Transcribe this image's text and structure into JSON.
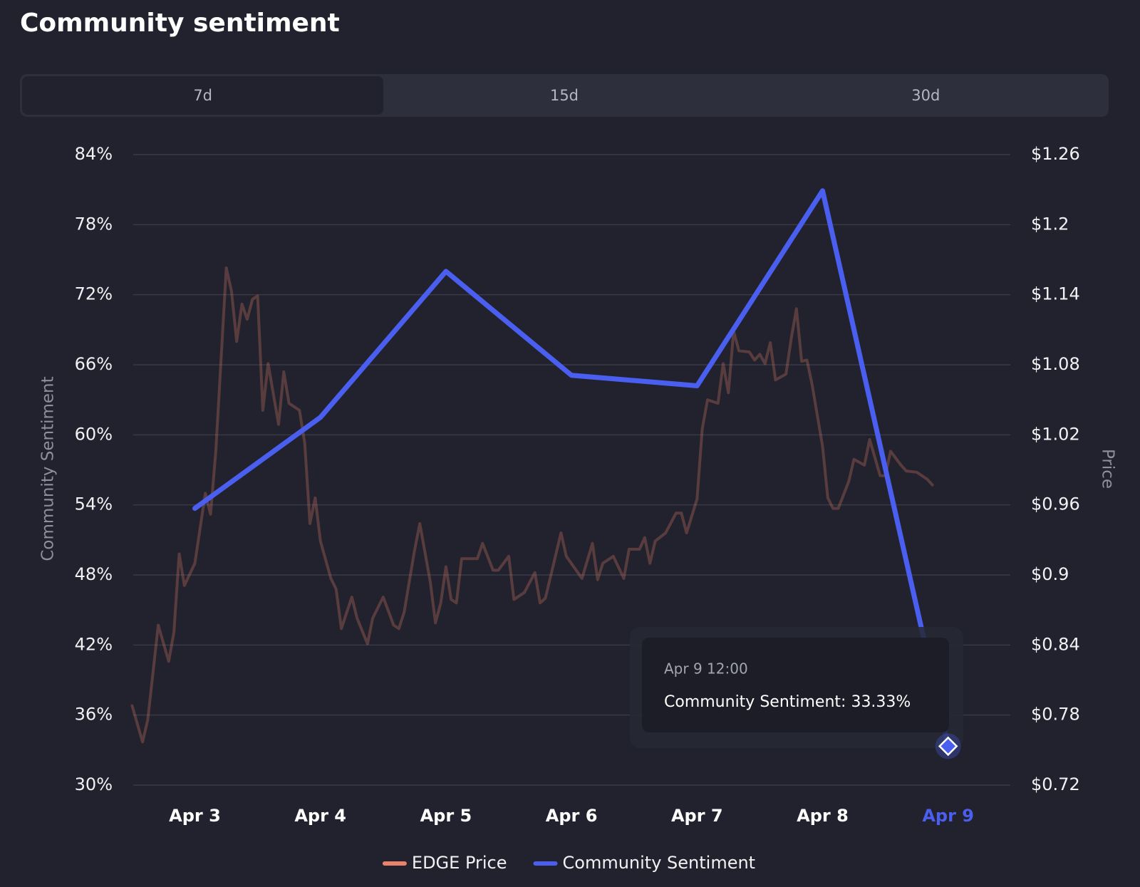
{
  "header": {
    "title": "Community sentiment"
  },
  "tabs": [
    "7d",
    "15d",
    "30d"
  ],
  "chart_data": {
    "type": "line",
    "y_label": "Community Sentiment",
    "y2_label": "Price",
    "categories": [
      "Apr 3",
      "Apr 4",
      "Apr 5",
      "Apr 6",
      "Apr 7",
      "Apr 8",
      "Apr 9"
    ],
    "ylim": [
      30,
      84
    ],
    "yticks": [
      {
        "value": 30,
        "label": "30%"
      },
      {
        "value": 36,
        "label": "36%"
      },
      {
        "value": 42,
        "label": "42%"
      },
      {
        "value": 48,
        "label": "48%"
      },
      {
        "value": 54,
        "label": "54%"
      },
      {
        "value": 60,
        "label": "60%"
      },
      {
        "value": 66,
        "label": "66%"
      },
      {
        "value": 72,
        "label": "72%"
      },
      {
        "value": 78,
        "label": "78%"
      },
      {
        "value": 84,
        "label": "84%"
      }
    ],
    "y2lim": [
      0.72,
      1.26
    ],
    "y2ticks": [
      {
        "value": 0.72,
        "label": "$0.72"
      },
      {
        "value": 0.78,
        "label": "$0.78"
      },
      {
        "value": 0.84,
        "label": "$0.84"
      },
      {
        "value": 0.9,
        "label": "$0.9"
      },
      {
        "value": 0.96,
        "label": "$0.96"
      },
      {
        "value": 1.02,
        "label": "$1.02"
      },
      {
        "value": 1.08,
        "label": "$1.08"
      },
      {
        "value": 1.14,
        "label": "$1.14"
      },
      {
        "value": 1.2,
        "label": "$1.2"
      },
      {
        "value": 1.26,
        "label": "$1.26"
      }
    ],
    "grid": true,
    "series": [
      {
        "name": "EDGE Price",
        "color": "#e8826a",
        "axis": "y2",
        "x": [
          "Apr 3 00:00",
          "Apr 3 02:00",
          "Apr 3 03:00",
          "Apr 3 05:00",
          "Apr 3 07:00",
          "Apr 3 08:00",
          "Apr 3 09:00",
          "Apr 3 10:00",
          "Apr 3 12:00",
          "Apr 3 14:00",
          "Apr 3 15:00",
          "Apr 3 16:00",
          "Apr 3 18:00",
          "Apr 3 19:00",
          "Apr 3 20:00",
          "Apr 3 21:00",
          "Apr 3 22:00",
          "Apr 3 23:00",
          "Apr 4 00:00",
          "Apr 4 01:00",
          "Apr 4 02:00",
          "Apr 4 04:00",
          "Apr 4 05:00",
          "Apr 4 06:00",
          "Apr 4 08:00",
          "Apr 4 09:00",
          "Apr 4 10:00",
          "Apr 4 11:00",
          "Apr 4 12:00",
          "Apr 4 14:00",
          "Apr 4 15:00",
          "Apr 4 16:00",
          "Apr 4 18:00",
          "Apr 4 19:00",
          "Apr 4 21:00",
          "Apr 4 22:00",
          "Apr 5 00:00",
          "Apr 5 02:00",
          "Apr 5 03:00",
          "Apr 5 04:00",
          "Apr 5 06:00",
          "Apr 5 07:00",
          "Apr 5 09:00",
          "Apr 5 10:00",
          "Apr 5 11:00",
          "Apr 5 12:00",
          "Apr 5 13:00",
          "Apr 5 14:00",
          "Apr 5 15:00",
          "Apr 5 18:00",
          "Apr 5 19:00",
          "Apr 5 21:00",
          "Apr 5 22:00",
          "Apr 6 00:00",
          "Apr 6 01:00",
          "Apr 6 03:00",
          "Apr 6 05:00",
          "Apr 6 06:00",
          "Apr 6 07:00",
          "Apr 6 10:00",
          "Apr 6 11:00",
          "Apr 6 14:00",
          "Apr 6 16:00",
          "Apr 6 17:00",
          "Apr 6 18:00",
          "Apr 6 20:00",
          "Apr 6 22:00",
          "Apr 6 23:00",
          "Apr 7 01:00",
          "Apr 7 02:00",
          "Apr 7 03:00",
          "Apr 7 04:00",
          "Apr 7 06:00",
          "Apr 7 08:00",
          "Apr 7 09:00",
          "Apr 7 10:00",
          "Apr 7 12:00",
          "Apr 7 13:00",
          "Apr 7 14:00",
          "Apr 7 16:00",
          "Apr 7 17:00",
          "Apr 7 18:00",
          "Apr 7 19:00",
          "Apr 7 20:00",
          "Apr 7 22:00",
          "Apr 7 23:00",
          "Apr 8 00:00",
          "Apr 8 01:00",
          "Apr 8 02:00",
          "Apr 8 03:00",
          "Apr 8 05:00",
          "Apr 8 06:00",
          "Apr 8 07:00",
          "Apr 8 08:00",
          "Apr 8 09:00",
          "Apr 8 10:00",
          "Apr 8 12:00",
          "Apr 8 13:00",
          "Apr 8 14:00",
          "Apr 8 15:00",
          "Apr 8 17:00",
          "Apr 8 18:00",
          "Apr 8 20:00",
          "Apr 8 21:00",
          "Apr 8 23:00",
          "Apr 9 00:00",
          "Apr 9 01:00",
          "Apr 9 03:00",
          "Apr 9 04:00",
          "Apr 9 06:00",
          "Apr 9 08:00",
          "Apr 9 09:00"
        ],
        "values": [
          0.788,
          0.757,
          0.776,
          0.857,
          0.826,
          0.851,
          0.918,
          0.891,
          0.91,
          0.97,
          0.952,
          1.006,
          1.163,
          1.143,
          1.1,
          1.132,
          1.119,
          1.136,
          1.139,
          1.041,
          1.081,
          1.029,
          1.074,
          1.047,
          1.041,
          1.013,
          0.944,
          0.966,
          0.929,
          0.897,
          0.888,
          0.854,
          0.881,
          0.863,
          0.841,
          0.863,
          0.881,
          0.857,
          0.854,
          0.868,
          0.921,
          0.944,
          0.894,
          0.859,
          0.876,
          0.907,
          0.879,
          0.876,
          0.914,
          0.914,
          0.927,
          0.904,
          0.904,
          0.916,
          0.879,
          0.885,
          0.902,
          0.876,
          0.88,
          0.936,
          0.916,
          0.897,
          0.927,
          0.896,
          0.91,
          0.916,
          0.897,
          0.922,
          0.922,
          0.932,
          0.91,
          0.929,
          0.936,
          0.953,
          0.953,
          0.936,
          0.965,
          1.025,
          1.05,
          1.047,
          1.081,
          1.056,
          1.109,
          1.092,
          1.091,
          1.084,
          1.089,
          1.081,
          1.099,
          1.067,
          1.072,
          1.102,
          1.128,
          1.083,
          1.084,
          1.063,
          1.01,
          0.966,
          0.957,
          0.957,
          0.98,
          0.999,
          0.994,
          1.016,
          0.985,
          0.985,
          1.006,
          0.994,
          0.989,
          0.988,
          0.982,
          0.977
        ]
      },
      {
        "name": "Community Sentiment",
        "color": "#4a5ff0",
        "values": [
          53.7,
          61.5,
          74.0,
          65.1,
          64.2,
          80.9,
          33.33
        ]
      }
    ],
    "tooltip": {
      "title": "Apr 9 12:00",
      "text": "Community Sentiment: 33.33%"
    }
  }
}
